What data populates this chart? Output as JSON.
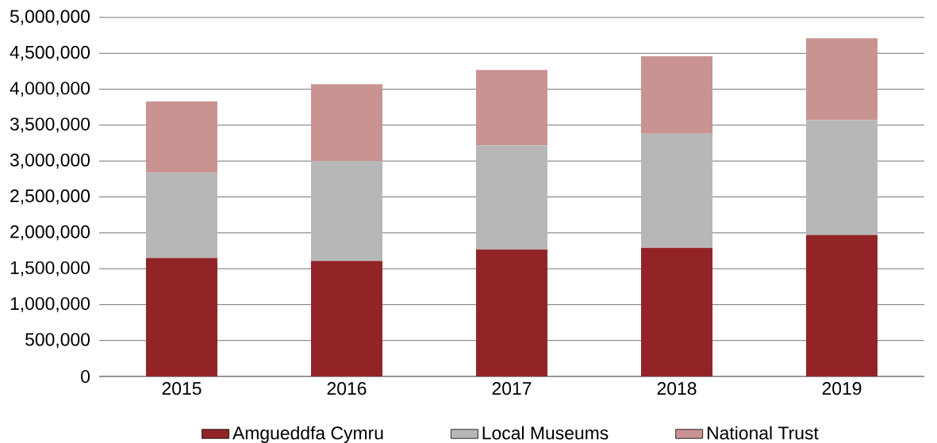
{
  "chart_data": {
    "type": "bar",
    "stacked": true,
    "categories": [
      "2015",
      "2016",
      "2017",
      "2018",
      "2019"
    ],
    "series": [
      {
        "name": "Amgueddfa Cymru",
        "color": "#922428",
        "values": [
          1650000,
          1610000,
          1770000,
          1790000,
          1970000
        ]
      },
      {
        "name": "Local Museums",
        "color": "#b7b7b7",
        "values": [
          1190000,
          1390000,
          1450000,
          1590000,
          1600000
        ]
      },
      {
        "name": "National Trust",
        "color": "#c99392",
        "values": [
          990000,
          1070000,
          1050000,
          1080000,
          1140000
        ]
      }
    ],
    "ylim": [
      0,
      5000000
    ],
    "yticks": [
      0,
      {
        "value": 500000,
        "label": "500,000"
      },
      {
        "value": 1000000,
        "label": "1,000,000"
      },
      {
        "value": 1500000,
        "label": "1,500,000"
      },
      {
        "value": 2000000,
        "label": "2,000,000"
      },
      {
        "value": 2500000,
        "label": "2,500,000"
      },
      {
        "value": 3000000,
        "label": "3,000,000"
      },
      {
        "value": 3500000,
        "label": "3,500,000"
      },
      {
        "value": 4000000,
        "label": "4,000,000"
      },
      {
        "value": 4500000,
        "label": "4,500,000"
      },
      {
        "value": 5000000,
        "label": "5,000,000"
      }
    ],
    "grid": "y",
    "legend": "bottom"
  }
}
